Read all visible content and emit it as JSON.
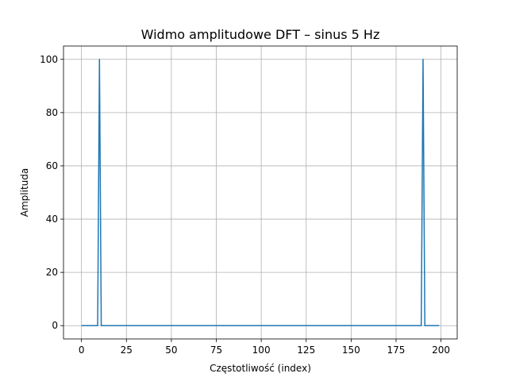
{
  "chart_data": {
    "type": "line",
    "title": "Widmo amplitudowe DFT – sinus 5 Hz",
    "xlabel": "Częstotliwość (index)",
    "ylabel": "Amplituda",
    "xlim": [
      -10,
      209
    ],
    "ylim": [
      -5,
      105
    ],
    "x_ticks": [
      0,
      25,
      50,
      75,
      100,
      125,
      150,
      175,
      200
    ],
    "y_ticks": [
      0,
      20,
      40,
      60,
      80,
      100
    ],
    "grid": true,
    "series": [
      {
        "color": "#1f77b4",
        "x": [
          0,
          9,
          10,
          11,
          189,
          190,
          191,
          199
        ],
        "y": [
          0,
          0,
          100,
          0,
          0,
          100,
          0,
          0
        ]
      }
    ]
  }
}
